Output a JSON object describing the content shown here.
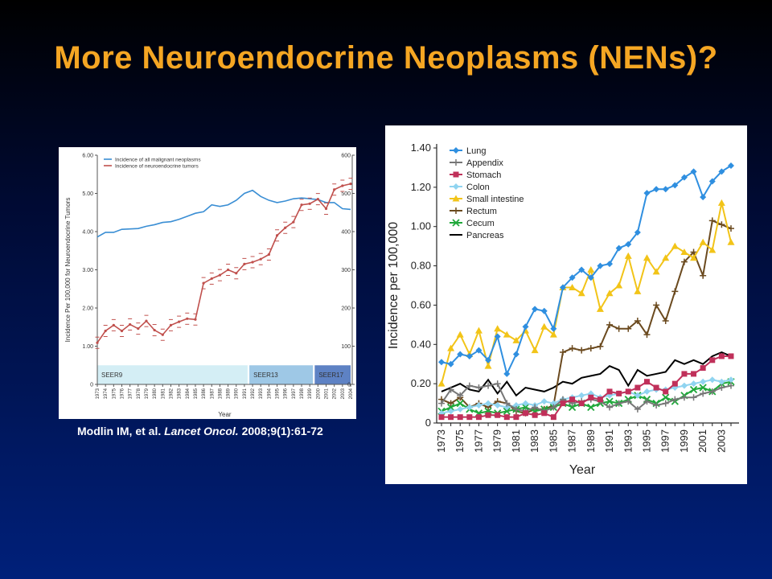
{
  "slide": {
    "title": "More Neuroendocrine Neoplasms (NENs)?",
    "citation": {
      "authors": "Modlin IM, et al. ",
      "journal": "Lancet Oncol.",
      "ref": " 2008;9(1):61-72"
    }
  },
  "chart_data": [
    {
      "type": "line",
      "xlabel": "Year",
      "ylabel": "Incidence Per 100,000 for Neuroendocrine Tumors",
      "ylim": [
        0,
        6
      ],
      "y2lim": [
        0,
        600
      ],
      "yticks": [
        "6.00",
        "5.00",
        "4.00",
        "3.00",
        "2.00",
        "1.00",
        "0"
      ],
      "y2ticks": [
        "600",
        "500",
        "400",
        "300",
        "200",
        "100",
        "0"
      ],
      "x": [
        "1973",
        "1974",
        "1975",
        "1976",
        "1977",
        "1978",
        "1979",
        "1980",
        "1981",
        "1982",
        "1983",
        "1984",
        "1985",
        "1986",
        "1987",
        "1988",
        "1989",
        "1990",
        "1991",
        "1992",
        "1993",
        "1994",
        "1995",
        "1996",
        "1997",
        "1998",
        "1999",
        "2000",
        "2001",
        "2002",
        "2003",
        "2004"
      ],
      "series": [
        {
          "name": "Incidence of all malignant neoplasms",
          "color": "#3a8ed4",
          "axis": "right",
          "values": [
            386,
            398,
            398,
            406,
            407,
            408,
            414,
            418,
            424,
            426,
            432,
            440,
            448,
            452,
            470,
            466,
            470,
            482,
            500,
            508,
            492,
            482,
            476,
            480,
            486,
            488,
            486,
            484,
            476,
            476,
            460,
            458
          ]
        },
        {
          "name": "Incidence of neuroendocrine tumors",
          "color": "#c0504d",
          "axis": "left",
          "values": [
            1.09,
            1.4,
            1.55,
            1.4,
            1.57,
            1.46,
            1.66,
            1.42,
            1.3,
            1.55,
            1.64,
            1.72,
            1.7,
            2.65,
            2.77,
            2.86,
            3.0,
            2.91,
            3.15,
            3.2,
            3.28,
            3.4,
            3.9,
            4.1,
            4.25,
            4.7,
            4.73,
            4.85,
            4.6,
            5.1,
            5.2,
            5.25
          ]
        }
      ],
      "bands": [
        {
          "label": "SEER9",
          "start": "1973",
          "end": "1991",
          "color": "#d4eef5"
        },
        {
          "label": "SEER13",
          "start": "1992",
          "end": "1999",
          "color": "#9ec8e6"
        },
        {
          "label": "SEER17",
          "start": "2000",
          "end": "2004",
          "color": "#5e82c4"
        }
      ]
    },
    {
      "type": "line",
      "xlabel": "Year",
      "ylabel": "Incidence per 100,000",
      "ylim": [
        0,
        1.4
      ],
      "yticks": [
        "1.40",
        "1.20",
        "1.00",
        "0.80",
        "0.60",
        "0.40",
        "0.20",
        "0"
      ],
      "xticks": [
        "1973",
        "1975",
        "1977",
        "1979",
        "1981",
        "1983",
        "1985",
        "1987",
        "1989",
        "1991",
        "1993",
        "1995",
        "1997",
        "1999",
        "2001",
        "2003"
      ],
      "x": [
        1973,
        1974,
        1975,
        1976,
        1977,
        1978,
        1979,
        1980,
        1981,
        1982,
        1983,
        1984,
        1985,
        1986,
        1987,
        1988,
        1989,
        1990,
        1991,
        1992,
        1993,
        1994,
        1995,
        1996,
        1997,
        1998,
        1999,
        2000,
        2001,
        2002,
        2003,
        2004
      ],
      "series": [
        {
          "name": "Lung",
          "color": "#2f8fe0",
          "marker": "diamond",
          "values": [
            0.31,
            0.3,
            0.35,
            0.34,
            0.37,
            0.32,
            0.44,
            0.25,
            0.35,
            0.49,
            0.58,
            0.57,
            0.48,
            0.69,
            0.74,
            0.78,
            0.74,
            0.8,
            0.81,
            0.89,
            0.91,
            0.97,
            1.17,
            1.19,
            1.19,
            1.21,
            1.25,
            1.28,
            1.15,
            1.23,
            1.28,
            1.31
          ]
        },
        {
          "name": "Appendix",
          "color": "#777777",
          "marker": "plus",
          "values": [
            0.1,
            0.17,
            0.14,
            0.19,
            0.18,
            0.19,
            0.2,
            0.1,
            0.07,
            0.06,
            0.08,
            0.06,
            0.08,
            0.12,
            0.1,
            0.11,
            0.12,
            0.11,
            0.08,
            0.1,
            0.11,
            0.07,
            0.11,
            0.09,
            0.1,
            0.12,
            0.13,
            0.13,
            0.15,
            0.16,
            0.18,
            0.19
          ]
        },
        {
          "name": "Stomach",
          "color": "#c0305a",
          "marker": "square",
          "values": [
            0.03,
            0.03,
            0.03,
            0.03,
            0.03,
            0.04,
            0.04,
            0.03,
            0.03,
            0.05,
            0.04,
            0.05,
            0.03,
            0.1,
            0.12,
            0.1,
            0.13,
            0.12,
            0.16,
            0.15,
            0.16,
            0.18,
            0.21,
            0.18,
            0.16,
            0.2,
            0.25,
            0.25,
            0.28,
            0.32,
            0.34,
            0.34
          ]
        },
        {
          "name": "Colon",
          "color": "#90d4f0",
          "marker": "diamond",
          "values": [
            0.05,
            0.06,
            0.07,
            0.08,
            0.09,
            0.1,
            0.09,
            0.08,
            0.09,
            0.1,
            0.09,
            0.11,
            0.1,
            0.12,
            0.13,
            0.14,
            0.15,
            0.13,
            0.14,
            0.15,
            0.16,
            0.14,
            0.16,
            0.17,
            0.17,
            0.18,
            0.19,
            0.2,
            0.21,
            0.22,
            0.21,
            0.22
          ]
        },
        {
          "name": "Small intestine",
          "color": "#f2c418",
          "marker": "triangle",
          "values": [
            0.2,
            0.38,
            0.45,
            0.35,
            0.47,
            0.29,
            0.48,
            0.45,
            0.42,
            0.47,
            0.37,
            0.49,
            0.45,
            0.69,
            0.69,
            0.66,
            0.78,
            0.58,
            0.66,
            0.7,
            0.85,
            0.67,
            0.84,
            0.77,
            0.84,
            0.9,
            0.87,
            0.84,
            0.92,
            0.88,
            1.12,
            0.92
          ]
        },
        {
          "name": "Rectum",
          "color": "#6b4a1f",
          "marker": "plus",
          "values": [
            0.12,
            0.1,
            0.13,
            0.08,
            0.1,
            0.08,
            0.11,
            0.1,
            0.06,
            0.05,
            0.07,
            0.07,
            0.09,
            0.36,
            0.38,
            0.37,
            0.38,
            0.39,
            0.5,
            0.48,
            0.48,
            0.52,
            0.45,
            0.6,
            0.52,
            0.67,
            0.82,
            0.87,
            0.75,
            1.03,
            1.01,
            0.99
          ]
        },
        {
          "name": "Cecum",
          "color": "#1fa83a",
          "marker": "x",
          "values": [
            0.06,
            0.08,
            0.1,
            0.07,
            0.05,
            0.06,
            0.05,
            0.06,
            0.07,
            0.08,
            0.06,
            0.07,
            0.08,
            0.1,
            0.08,
            0.1,
            0.08,
            0.1,
            0.11,
            0.1,
            0.12,
            0.14,
            0.12,
            0.1,
            0.13,
            0.11,
            0.14,
            0.17,
            0.18,
            0.16,
            0.2,
            0.21
          ]
        },
        {
          "name": "Pancreas",
          "color": "#000000",
          "marker": "none",
          "values": [
            0.16,
            0.18,
            0.2,
            0.17,
            0.16,
            0.22,
            0.15,
            0.21,
            0.14,
            0.18,
            0.17,
            0.16,
            0.18,
            0.21,
            0.2,
            0.23,
            0.24,
            0.25,
            0.29,
            0.27,
            0.19,
            0.27,
            0.24,
            0.25,
            0.26,
            0.32,
            0.3,
            0.32,
            0.3,
            0.34,
            0.36,
            0.34
          ]
        }
      ]
    }
  ]
}
